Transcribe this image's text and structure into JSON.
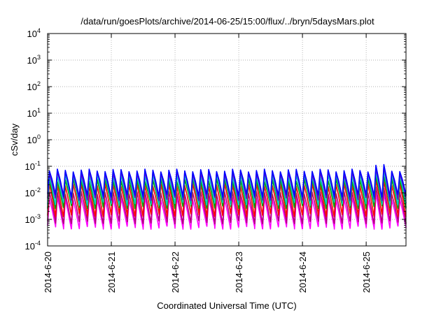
{
  "chart_data": {
    "type": "line",
    "title": "/data/run/goesPlots/archive/2014-06-25/15:00/flux/../bryn/5daysMars.plot",
    "xlabel": "Coordinated Universal Time (UTC)",
    "ylabel": "cSv/day",
    "y_scale": "log",
    "ylim": [
      0.0001,
      10000
    ],
    "y_ticks": [
      {
        "base": "10",
        "exp": "-4",
        "value": 0.0001
      },
      {
        "base": "10",
        "exp": "-3",
        "value": 0.001
      },
      {
        "base": "10",
        "exp": "-2",
        "value": 0.01
      },
      {
        "base": "10",
        "exp": "-1",
        "value": 0.1
      },
      {
        "base": "10",
        "exp": "0",
        "value": 1
      },
      {
        "base": "10",
        "exp": "1",
        "value": 10
      },
      {
        "base": "10",
        "exp": "2",
        "value": 100
      },
      {
        "base": "10",
        "exp": "3",
        "value": 1000
      },
      {
        "base": "10",
        "exp": "4",
        "value": 10000
      }
    ],
    "xlim": [
      "2014-06-20 00:00",
      "2014-06-25 15:00"
    ],
    "x_ticks": [
      "2014-6-20",
      "2014-6-21",
      "2014-6-22",
      "2014-6-23",
      "2014-6-24",
      "2014-6-25"
    ],
    "grid": true,
    "oscillation_period_hours": 3,
    "series": [
      {
        "color": "#ff00ff",
        "peak": 0.006,
        "trough": 0.0005
      },
      {
        "color": "#b0007a",
        "peak": 0.01,
        "trough": 0.0008
      },
      {
        "color": "#ff0000",
        "peak": 0.02,
        "trough": 0.0015
      },
      {
        "color": "#00a000",
        "peak": 0.03,
        "trough": 0.003
      },
      {
        "color": "#00c8c8",
        "peak": 0.045,
        "trough": 0.004
      },
      {
        "color": "#6600cc",
        "peak": 0.06,
        "trough": 0.006
      },
      {
        "color": "#0000ff",
        "peak": 0.07,
        "trough": 0.008
      }
    ]
  }
}
